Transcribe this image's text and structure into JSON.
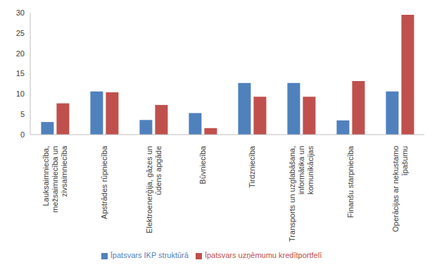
{
  "chart_data": {
    "type": "bar",
    "categories": [
      "Lauksaimniecība, mežsaimniecība un zivsaimniecība",
      "Apstrādes rūpniecība",
      "Elektroenerģija, gāzes un ūdens apgāde",
      "Būvniecība",
      "Tirdzniecība",
      "Transports un uzglabāšana, informātika un komunikācijas",
      "Finanšu starpniecība",
      "Operācijas ar nekustamo īpašumu"
    ],
    "series": [
      {
        "name": "Īpatsvars IKP struktūrā",
        "color": "#4f81bd",
        "values": [
          3.1,
          10.6,
          3.6,
          5.3,
          12.7,
          12.7,
          3.5,
          10.6
        ]
      },
      {
        "name": "Īpatsvars uzņēmumu kredītportfelī",
        "color": "#c0504d",
        "values": [
          7.7,
          10.4,
          7.3,
          1.6,
          9.3,
          9.3,
          13.2,
          29.5
        ]
      }
    ],
    "ylim": [
      0,
      30
    ],
    "yticks": [
      0,
      5,
      10,
      15,
      20,
      25,
      30
    ],
    "grid": false,
    "legend": "bottom"
  }
}
